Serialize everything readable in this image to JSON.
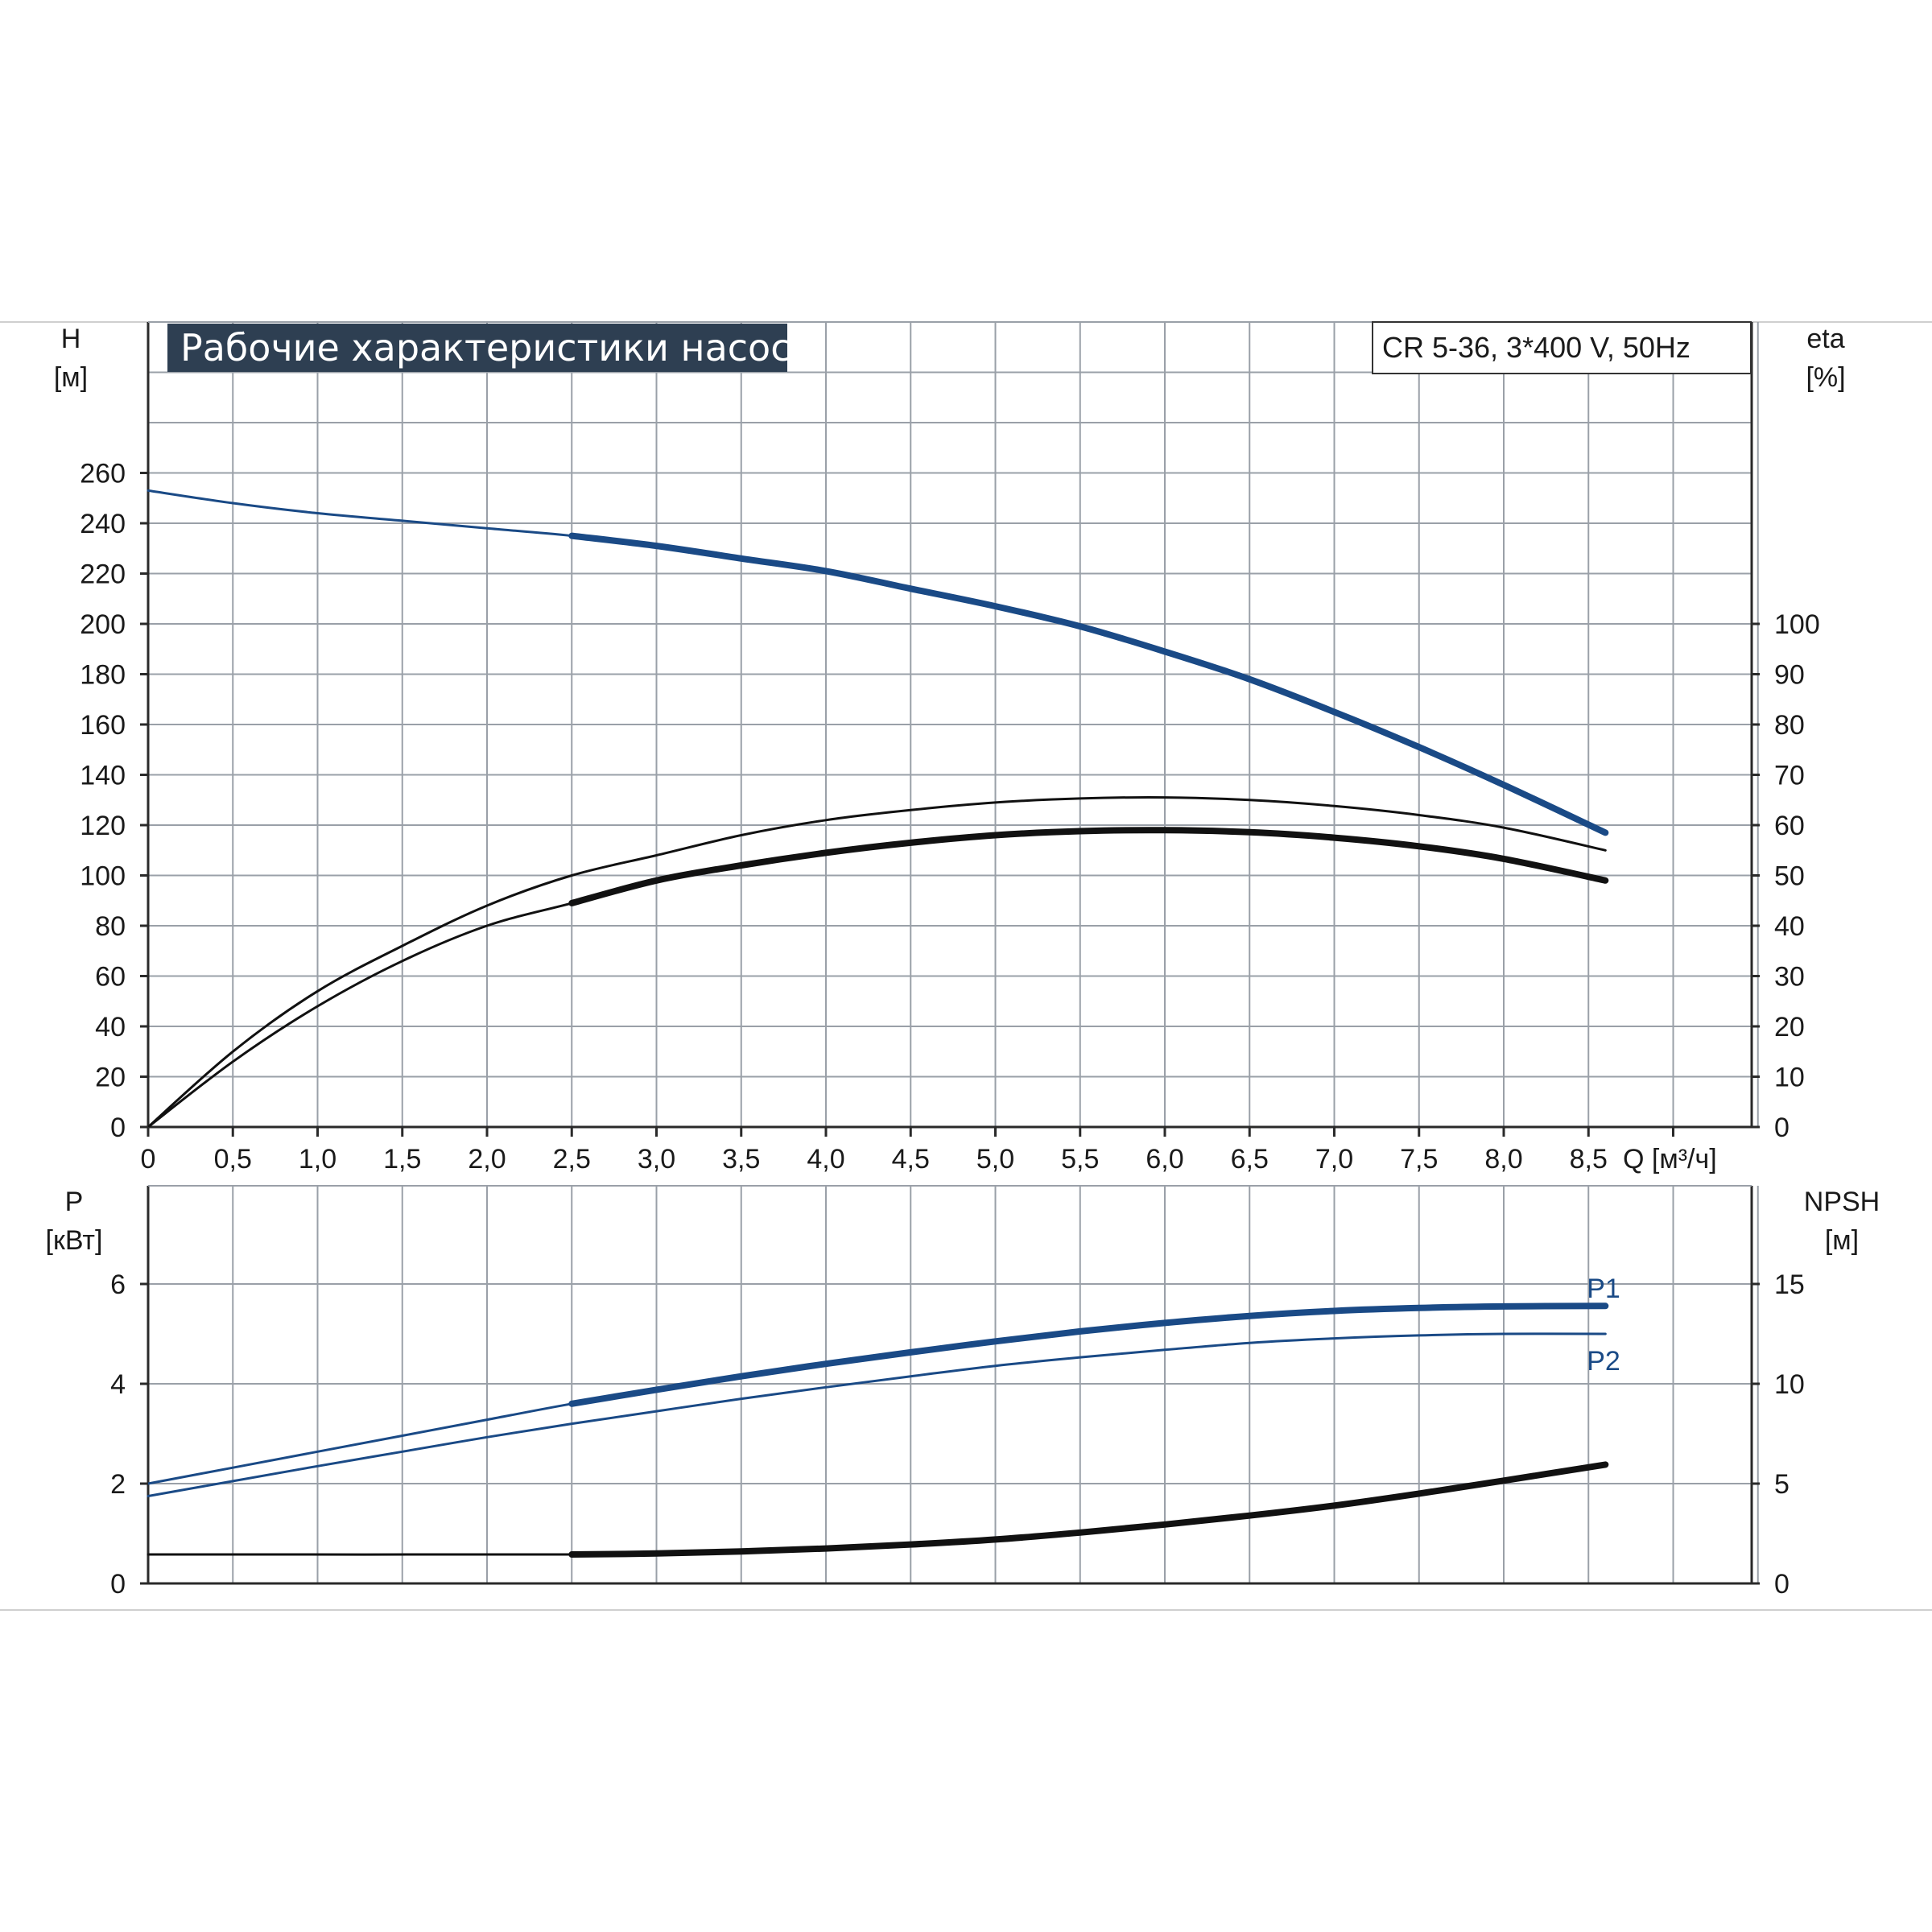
{
  "chart_data": [
    {
      "type": "line",
      "panel": "upper",
      "title": "Рабочие характеристики насоса",
      "model_label": "CR 5-36, 3*400 V, 50Hz",
      "xlabel": "Q [м³/ч]",
      "x_unit_label": "Q [м³/ч]",
      "xlim": [
        0,
        9.5
      ],
      "x_ticks": [
        "0",
        "0,5",
        "1,0",
        "1,5",
        "2,0",
        "2,5",
        "3,0",
        "3,5",
        "4,0",
        "4,5",
        "5,0",
        "5,5",
        "6,0",
        "6,5",
        "7,0",
        "7,5",
        "8,0",
        "8,5"
      ],
      "x_tick_values": [
        0,
        0.5,
        1.0,
        1.5,
        2.0,
        2.5,
        3.0,
        3.5,
        4.0,
        4.5,
        5.0,
        5.5,
        6.0,
        6.5,
        7.0,
        7.5,
        8.0,
        8.5
      ],
      "ylabel_left": "H",
      "ylabel_left_unit": "[м]",
      "ylim_left": [
        0,
        260
      ],
      "y_ticks_left": [
        "0",
        "20",
        "40",
        "60",
        "80",
        "100",
        "120",
        "140",
        "160",
        "180",
        "200",
        "220",
        "240",
        "260"
      ],
      "ylabel_right": "eta",
      "ylabel_right_unit": "[%]",
      "ylim_right": [
        0,
        100
      ],
      "y_ticks_right": [
        "0",
        "10",
        "20",
        "30",
        "40",
        "50",
        "60",
        "70",
        "80",
        "90",
        "100"
      ],
      "grid": true,
      "series": [
        {
          "axis": "left",
          "color": "#1a4a86",
          "x": [
            0,
            0.5,
            1.0,
            1.5,
            2.0,
            2.5,
            3.0,
            3.5,
            4.0,
            4.5,
            5.0,
            5.5,
            6.0,
            6.5,
            7.0,
            7.5,
            8.0,
            8.6
          ],
          "values": [
            253,
            248,
            244,
            241,
            238,
            235,
            231,
            226,
            221,
            214,
            207,
            199,
            189,
            178,
            165,
            151,
            136,
            117
          ],
          "bold_from": 2.5
        },
        {
          "axis": "right",
          "color": "#111111",
          "x": [
            0,
            0.5,
            1.0,
            1.5,
            2.0,
            2.5,
            3.0,
            3.5,
            4.0,
            4.5,
            5.0,
            5.5,
            6.0,
            6.5,
            7.0,
            7.5,
            8.0,
            8.6
          ],
          "values": [
            0,
            15,
            27,
            36,
            44,
            50,
            54,
            58,
            61,
            63,
            64.5,
            65.3,
            65.5,
            65,
            63.8,
            62,
            59.5,
            55
          ]
        },
        {
          "axis": "right",
          "color": "#111111",
          "x": [
            0,
            0.5,
            1.0,
            1.5,
            2.0,
            2.5,
            3.0,
            3.5,
            4.0,
            4.5,
            5.0,
            5.5,
            6.0,
            6.5,
            7.0,
            7.5,
            8.0,
            8.6
          ],
          "values": [
            0,
            13,
            24,
            33,
            40,
            44.5,
            49,
            52,
            54.5,
            56.5,
            58,
            58.8,
            59,
            58.6,
            57.5,
            55.8,
            53.3,
            49
          ],
          "bold_from": 2.5
        }
      ]
    },
    {
      "type": "line",
      "panel": "lower",
      "xlim": [
        0,
        9.5
      ],
      "ylabel_left": "P",
      "ylabel_left_unit": "[кВт]",
      "ylim_left": [
        0,
        8
      ],
      "y_ticks_left": [
        "0",
        "2",
        "4",
        "6"
      ],
      "ylabel_right": "NPSH",
      "ylabel_right_unit": "[м]",
      "ylim_right": [
        0,
        20
      ],
      "y_ticks_right": [
        "0",
        "5",
        "10",
        "15"
      ],
      "grid": true,
      "series": [
        {
          "name": "P1",
          "axis": "left",
          "color": "#1a4a86",
          "x": [
            0,
            0.5,
            1.0,
            1.5,
            2.0,
            2.5,
            3.0,
            3.5,
            4.0,
            4.5,
            5.0,
            5.5,
            6.0,
            6.5,
            7.0,
            7.5,
            8.0,
            8.6
          ],
          "values": [
            2.0,
            2.32,
            2.64,
            2.96,
            3.28,
            3.6,
            3.88,
            4.15,
            4.4,
            4.63,
            4.85,
            5.05,
            5.22,
            5.36,
            5.46,
            5.52,
            5.55,
            5.56
          ],
          "bold_from": 2.5
        },
        {
          "name": "P2",
          "axis": "left",
          "color": "#1a4a86",
          "x": [
            0,
            0.5,
            1.0,
            1.5,
            2.0,
            2.5,
            3.0,
            3.5,
            4.0,
            4.5,
            5.0,
            5.5,
            6.0,
            6.5,
            7.0,
            7.5,
            8.0,
            8.6
          ],
          "values": [
            1.75,
            2.05,
            2.35,
            2.64,
            2.93,
            3.2,
            3.45,
            3.7,
            3.93,
            4.15,
            4.36,
            4.53,
            4.68,
            4.82,
            4.91,
            4.97,
            5.0,
            5.0
          ]
        },
        {
          "axis": "right",
          "color": "#111111",
          "x": [
            0,
            2.5,
            3.0,
            3.5,
            4.0,
            4.5,
            5.0,
            5.5,
            6.0,
            6.5,
            7.0,
            7.5,
            8.0,
            8.6
          ],
          "values": [
            1.45,
            1.45,
            1.5,
            1.6,
            1.75,
            1.95,
            2.2,
            2.55,
            2.95,
            3.4,
            3.9,
            4.5,
            5.15,
            5.95
          ],
          "bold_from": 2.5
        }
      ]
    }
  ]
}
